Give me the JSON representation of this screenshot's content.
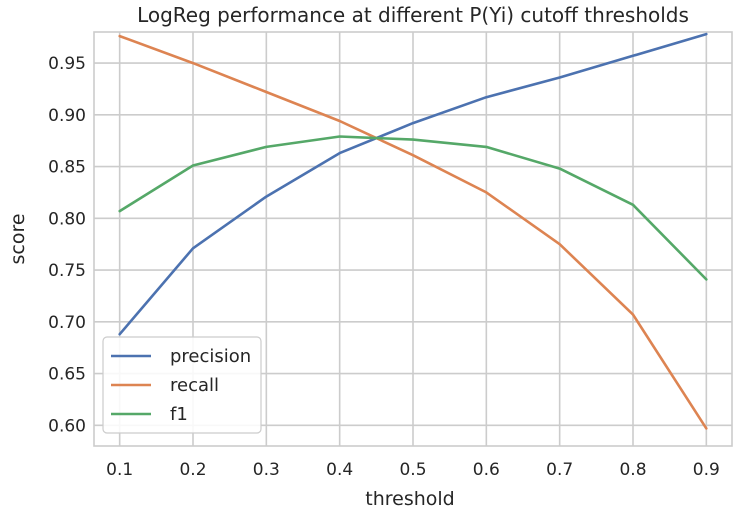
{
  "chart_data": {
    "type": "line",
    "title": "LogReg performance at different P(Yi) cutoff thresholds",
    "xlabel": "threshold",
    "ylabel": "score",
    "x": [
      0.1,
      0.2,
      0.3,
      0.4,
      0.5,
      0.6,
      0.7,
      0.8,
      0.9
    ],
    "x_ticks": [
      "0.1",
      "0.2",
      "0.3",
      "0.4",
      "0.5",
      "0.6",
      "0.7",
      "0.8",
      "0.9"
    ],
    "y_ticks": [
      "0.60",
      "0.65",
      "0.70",
      "0.75",
      "0.80",
      "0.85",
      "0.90",
      "0.95"
    ],
    "xlim": [
      0.065,
      0.935
    ],
    "ylim": [
      0.58,
      0.98
    ],
    "grid": true,
    "legend_position": "lower-left",
    "series": [
      {
        "name": "precision",
        "color": "#4c72b0",
        "values": [
          0.688,
          0.771,
          0.821,
          0.863,
          0.892,
          0.917,
          0.936,
          0.957,
          0.978
        ]
      },
      {
        "name": "recall",
        "color": "#dd8452",
        "values": [
          0.976,
          0.95,
          0.922,
          0.894,
          0.861,
          0.825,
          0.775,
          0.707,
          0.597
        ]
      },
      {
        "name": "f1",
        "color": "#55a868",
        "values": [
          0.807,
          0.851,
          0.869,
          0.879,
          0.876,
          0.869,
          0.848,
          0.813,
          0.741
        ]
      }
    ]
  }
}
